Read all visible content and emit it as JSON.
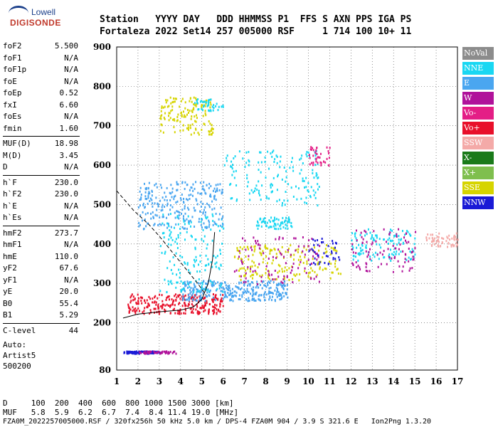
{
  "logo": {
    "line1": "Lowell",
    "line2": "DIGISONDE"
  },
  "header": {
    "row1": "Station   YYYY DAY   DDD HHMMSS P1  FFS S AXN PPS IGA PS",
    "row2": "Fortaleza 2022 Set14 257 005000 RSF     1 714 100 10+ 11"
  },
  "params": [
    {
      "label": "foF2",
      "value": "5.500"
    },
    {
      "label": "foF1",
      "value": "N/A"
    },
    {
      "label": "foF1p",
      "value": "N/A"
    },
    {
      "label": "foE",
      "value": "N/A"
    },
    {
      "label": "foEp",
      "value": "0.52"
    },
    {
      "label": "fxI",
      "value": "6.60"
    },
    {
      "label": "foEs",
      "value": "N/A"
    },
    {
      "label": "fmin",
      "value": "1.60"
    },
    {
      "label": "MUF(D)",
      "value": "18.98"
    },
    {
      "label": "M(D)",
      "value": "3.45"
    },
    {
      "label": "D",
      "value": "N/A"
    },
    {
      "label": "h`F",
      "value": "230.0"
    },
    {
      "label": "h`F2",
      "value": "230.0"
    },
    {
      "label": "h`E",
      "value": "N/A"
    },
    {
      "label": "h`Es",
      "value": "N/A"
    },
    {
      "label": "hmF2",
      "value": "273.7"
    },
    {
      "label": "hmF1",
      "value": "N/A"
    },
    {
      "label": "hmE",
      "value": "110.0"
    },
    {
      "label": "yF2",
      "value": "67.6"
    },
    {
      "label": "yF1",
      "value": "N/A"
    },
    {
      "label": "yE",
      "value": "20.0"
    },
    {
      "label": "B0",
      "value": "55.4"
    },
    {
      "label": "B1",
      "value": "5.29"
    },
    {
      "label": "C-level",
      "value": "44"
    }
  ],
  "auto": [
    "Auto:",
    "Artist5",
    "500200"
  ],
  "legend": [
    {
      "label": "NoVal",
      "color": "#8c8c8c"
    },
    {
      "label": "NNE",
      "color": "#19d7f2"
    },
    {
      "label": "E",
      "color": "#4aa6f0"
    },
    {
      "label": "W",
      "color": "#b0129a"
    },
    {
      "label": "Vo-",
      "color": "#e41e86"
    },
    {
      "label": "Vo+",
      "color": "#e8102a"
    },
    {
      "label": "SSW",
      "color": "#f4aaa8"
    },
    {
      "label": "X-",
      "color": "#1a7a1a"
    },
    {
      "label": "X+",
      "color": "#7fbf4e"
    },
    {
      "label": "SSE",
      "color": "#d6d400"
    },
    {
      "label": "NNW",
      "color": "#1a1ad6"
    }
  ],
  "footer": {
    "row1": "D     100  200  400  600  800 1000 1500 3000 [km]",
    "row2": "MUF   5.8  5.9  6.2  6.7  7.4  8.4 11.4 19.0 [MHz]",
    "row3": "FZA0M_2022257005000.RSF / 320fx256h 50 kHz 5.0 km / DPS-4 FZA0M 904 / 3.9 S 321.6 E   Ion2Png 1.3.20"
  },
  "chart_data": {
    "type": "scatter",
    "xlim": [
      1,
      17
    ],
    "ylim": [
      80,
      900
    ],
    "x_ticks": [
      1,
      2,
      3,
      4,
      5,
      6,
      7,
      8,
      9,
      10,
      11,
      12,
      13,
      14,
      15,
      16,
      17
    ],
    "y_ticks": [
      80,
      200,
      300,
      400,
      500,
      600,
      700,
      800,
      900
    ],
    "grid": true,
    "clusters": [
      {
        "color": "#1a1ad6",
        "x": [
          1.3,
          3.0
        ],
        "y": [
          124,
          130
        ],
        "n": 90
      },
      {
        "color": "#b0129a",
        "x": [
          2.0,
          3.8
        ],
        "y": [
          124,
          130
        ],
        "n": 50
      },
      {
        "color": "#e8102a",
        "x": [
          1.5,
          6.0
        ],
        "y": [
          225,
          275
        ],
        "n": 260
      },
      {
        "color": "#4aa6f0",
        "x": [
          4.0,
          9.0
        ],
        "y": [
          258,
          310
        ],
        "n": 320
      },
      {
        "color": "#19d7f2",
        "x": [
          3.0,
          6.0
        ],
        "y": [
          280,
          480
        ],
        "n": 170
      },
      {
        "color": "#4aa6f0",
        "x": [
          2.0,
          6.0
        ],
        "y": [
          440,
          560
        ],
        "n": 260
      },
      {
        "color": "#19d7f2",
        "x": [
          6.0,
          10.5
        ],
        "y": [
          500,
          640
        ],
        "n": 160
      },
      {
        "color": "#d6d400",
        "x": [
          3.0,
          5.5
        ],
        "y": [
          680,
          775
        ],
        "n": 140
      },
      {
        "color": "#19d7f2",
        "x": [
          4.5,
          6.0
        ],
        "y": [
          740,
          770
        ],
        "n": 40
      },
      {
        "color": "#d6d400",
        "x": [
          6.5,
          11.5
        ],
        "y": [
          310,
          400
        ],
        "n": 180
      },
      {
        "color": "#b0129a",
        "x": [
          6.5,
          10.5
        ],
        "y": [
          300,
          420
        ],
        "n": 100
      },
      {
        "color": "#19d7f2",
        "x": [
          7.5,
          9.2
        ],
        "y": [
          440,
          470
        ],
        "n": 70
      },
      {
        "color": "#e41e86",
        "x": [
          10.0,
          11.0
        ],
        "y": [
          600,
          650
        ],
        "n": 40
      },
      {
        "color": "#19d7f2",
        "x": [
          12.0,
          15.0
        ],
        "y": [
          360,
          440
        ],
        "n": 120
      },
      {
        "color": "#b0129a",
        "x": [
          12.0,
          15.0
        ],
        "y": [
          330,
          440
        ],
        "n": 90
      },
      {
        "color": "#f4aaa8",
        "x": [
          15.5,
          17.0
        ],
        "y": [
          395,
          430
        ],
        "n": 60
      },
      {
        "color": "#1a1ad6",
        "x": [
          10.0,
          11.5
        ],
        "y": [
          350,
          420
        ],
        "n": 40
      }
    ],
    "lines": [
      {
        "style": "solid",
        "points": [
          [
            1.3,
            212
          ],
          [
            2.0,
            222
          ],
          [
            3.0,
            228
          ],
          [
            4.0,
            232
          ],
          [
            4.6,
            240
          ],
          [
            5.0,
            260
          ],
          [
            5.3,
            300
          ],
          [
            5.5,
            360
          ],
          [
            5.6,
            430
          ]
        ]
      },
      {
        "style": "dashed",
        "points": [
          [
            1.0,
            535
          ],
          [
            1.8,
            485
          ],
          [
            2.5,
            450
          ],
          [
            3.0,
            420
          ],
          [
            3.6,
            380
          ],
          [
            4.2,
            340
          ],
          [
            4.8,
            300
          ],
          [
            5.2,
            270
          ]
        ]
      }
    ]
  }
}
